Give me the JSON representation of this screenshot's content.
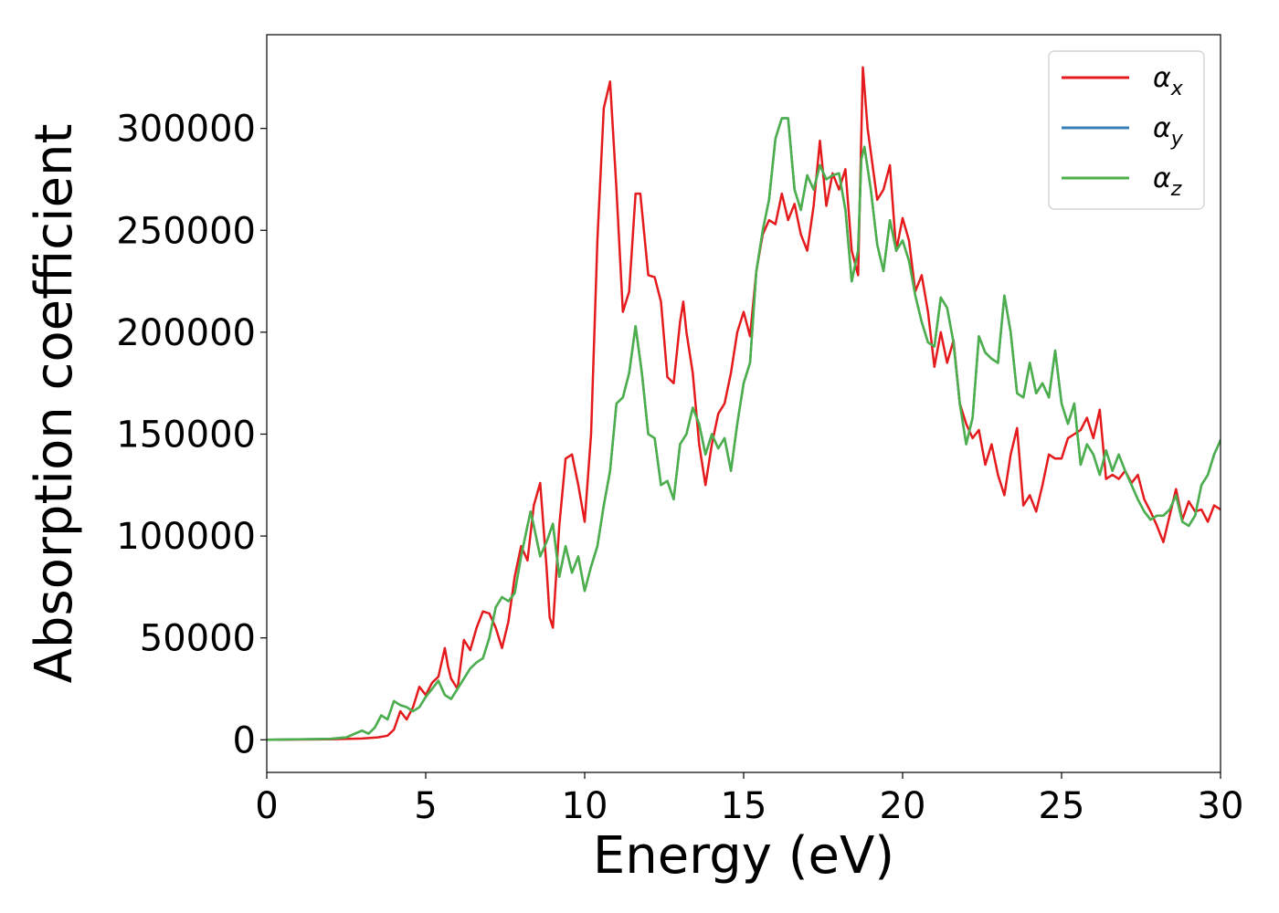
{
  "chart_data": {
    "type": "line",
    "xlabel": "Energy (eV)",
    "ylabel": "Absorption coefficient",
    "xlim": [
      0,
      30
    ],
    "ylim": [
      -16000,
      346000
    ],
    "xticks": [
      0,
      5,
      10,
      15,
      20,
      25,
      30
    ],
    "yticks": [
      0,
      50000,
      100000,
      150000,
      200000,
      250000,
      300000
    ],
    "grid": false,
    "legend_position": "top-right",
    "series": [
      {
        "name": "α",
        "subscript": "x",
        "color": "#e41a1c",
        "x": [
          0,
          2,
          3,
          3.5,
          3.8,
          4.0,
          4.2,
          4.4,
          4.6,
          4.8,
          5.0,
          5.2,
          5.4,
          5.6,
          5.7,
          5.8,
          6.0,
          6.2,
          6.4,
          6.6,
          6.8,
          7.0,
          7.2,
          7.4,
          7.6,
          7.8,
          8.0,
          8.2,
          8.4,
          8.6,
          8.8,
          8.9,
          9.0,
          9.2,
          9.4,
          9.6,
          9.8,
          10.0,
          10.2,
          10.4,
          10.6,
          10.8,
          11.0,
          11.2,
          11.4,
          11.6,
          11.75,
          12.0,
          12.2,
          12.4,
          12.6,
          12.8,
          13.0,
          13.1,
          13.2,
          13.4,
          13.6,
          13.8,
          14.0,
          14.2,
          14.4,
          14.6,
          14.8,
          15.0,
          15.2,
          15.4,
          15.6,
          15.8,
          16.0,
          16.2,
          16.4,
          16.6,
          16.8,
          17.0,
          17.2,
          17.4,
          17.6,
          17.8,
          18.0,
          18.2,
          18.4,
          18.6,
          18.75,
          18.9,
          19.2,
          19.4,
          19.6,
          19.8,
          20.0,
          20.2,
          20.4,
          20.6,
          20.8,
          21.0,
          21.2,
          21.4,
          21.6,
          21.8,
          22.0,
          22.2,
          22.4,
          22.6,
          22.8,
          23.0,
          23.2,
          23.4,
          23.6,
          23.8,
          24.0,
          24.2,
          24.4,
          24.6,
          24.8,
          25.0,
          25.2,
          25.4,
          25.6,
          25.8,
          26.0,
          26.2,
          26.4,
          26.6,
          26.8,
          27.0,
          27.2,
          27.4,
          27.6,
          27.8,
          28.0,
          28.2,
          28.4,
          28.6,
          28.8,
          29.0,
          29.2,
          29.4,
          29.6,
          29.8,
          30.0
        ],
        "y": [
          0,
          200,
          600,
          1200,
          2000,
          5000,
          14000,
          10000,
          16000,
          26000,
          22000,
          28000,
          31000,
          45000,
          36000,
          30000,
          25000,
          49000,
          44000,
          55000,
          63000,
          62000,
          55000,
          45000,
          58000,
          80000,
          95000,
          88000,
          115000,
          126000,
          85000,
          60000,
          55000,
          105000,
          138000,
          140000,
          125000,
          107000,
          150000,
          245000,
          310000,
          323000,
          270000,
          210000,
          220000,
          268000,
          268000,
          228000,
          227000,
          215000,
          178000,
          175000,
          205000,
          215000,
          200000,
          180000,
          145000,
          125000,
          145000,
          160000,
          165000,
          180000,
          200000,
          210000,
          198000,
          230000,
          248000,
          255000,
          253000,
          268000,
          255000,
          263000,
          248000,
          240000,
          262000,
          294000,
          262000,
          278000,
          270000,
          280000,
          240000,
          228000,
          330000,
          300000,
          265000,
          270000,
          282000,
          240000,
          256000,
          245000,
          220000,
          228000,
          210000,
          183000,
          200000,
          185000,
          196000,
          165000,
          155000,
          148000,
          152000,
          135000,
          145000,
          130000,
          120000,
          140000,
          153000,
          115000,
          120000,
          112000,
          125000,
          140000,
          138000,
          138000,
          148000,
          150000,
          152000,
          158000,
          148000,
          162000,
          128000,
          130000,
          128000,
          132000,
          126000,
          130000,
          118000,
          112000,
          105000,
          97000,
          110000,
          123000,
          108000,
          117000,
          112000,
          113000,
          107000,
          115000,
          113000
        ]
      },
      {
        "name": "α",
        "subscript": "y",
        "color": "#377eb8",
        "x": [
          0,
          2,
          2.5,
          3.0,
          3.2,
          3.4,
          3.6,
          3.8,
          4.0,
          4.2,
          4.4,
          4.6,
          4.8,
          5.0,
          5.2,
          5.4,
          5.6,
          5.8,
          6.0,
          6.2,
          6.4,
          6.6,
          6.8,
          7.0,
          7.2,
          7.4,
          7.6,
          7.8,
          8.0,
          8.2,
          8.3,
          8.4,
          8.6,
          8.8,
          9.0,
          9.2,
          9.4,
          9.6,
          9.8,
          10.0,
          10.2,
          10.4,
          10.6,
          10.8,
          11.0,
          11.2,
          11.4,
          11.6,
          11.8,
          12.0,
          12.2,
          12.4,
          12.6,
          12.8,
          13.0,
          13.2,
          13.4,
          13.6,
          13.8,
          14.0,
          14.2,
          14.4,
          14.6,
          14.8,
          15.0,
          15.2,
          15.4,
          15.6,
          15.8,
          16.0,
          16.2,
          16.4,
          16.6,
          16.8,
          17.0,
          17.2,
          17.4,
          17.6,
          17.8,
          18.0,
          18.2,
          18.4,
          18.6,
          18.7,
          18.8,
          19.0,
          19.2,
          19.4,
          19.6,
          19.8,
          20.0,
          20.2,
          20.4,
          20.6,
          20.8,
          21.0,
          21.2,
          21.4,
          21.6,
          21.8,
          22.0,
          22.2,
          22.4,
          22.6,
          22.8,
          23.0,
          23.2,
          23.4,
          23.6,
          23.8,
          24.0,
          24.2,
          24.4,
          24.6,
          24.8,
          25.0,
          25.2,
          25.4,
          25.6,
          25.8,
          26.0,
          26.2,
          26.4,
          26.6,
          26.8,
          27.0,
          27.2,
          27.4,
          27.6,
          27.8,
          28.0,
          28.2,
          28.4,
          28.6,
          28.8,
          29.0,
          29.2,
          29.4,
          29.6,
          29.8,
          30.0
        ],
        "y": [
          0,
          500,
          1200,
          4500,
          3000,
          6000,
          12000,
          10000,
          19000,
          17000,
          16000,
          14000,
          16000,
          21000,
          25000,
          29000,
          22000,
          20000,
          25000,
          30000,
          35000,
          38000,
          40000,
          50000,
          65000,
          70000,
          68000,
          72000,
          90000,
          105000,
          112000,
          105000,
          90000,
          97000,
          106000,
          80000,
          95000,
          82000,
          90000,
          73000,
          85000,
          95000,
          115000,
          132000,
          165000,
          168000,
          180000,
          203000,
          180000,
          150000,
          148000,
          125000,
          127000,
          118000,
          145000,
          150000,
          163000,
          155000,
          140000,
          150000,
          143000,
          148000,
          132000,
          155000,
          175000,
          185000,
          230000,
          250000,
          265000,
          295000,
          305000,
          305000,
          270000,
          260000,
          277000,
          270000,
          282000,
          275000,
          277000,
          278000,
          260000,
          225000,
          240000,
          285000,
          291000,
          270000,
          243000,
          230000,
          255000,
          240000,
          245000,
          235000,
          218000,
          205000,
          195000,
          193000,
          217000,
          212000,
          195000,
          165000,
          145000,
          158000,
          198000,
          190000,
          187000,
          185000,
          218000,
          200000,
          170000,
          168000,
          185000,
          170000,
          175000,
          168000,
          191000,
          165000,
          155000,
          165000,
          135000,
          145000,
          140000,
          130000,
          142000,
          132000,
          140000,
          132000,
          125000,
          118000,
          112000,
          108000,
          110000,
          110000,
          113000,
          120000,
          107000,
          105000,
          110000,
          125000,
          130000,
          140000,
          147000
        ]
      },
      {
        "name": "α",
        "subscript": "z",
        "color": "#4daf4a",
        "x": [
          0,
          2,
          2.5,
          3.0,
          3.2,
          3.4,
          3.6,
          3.8,
          4.0,
          4.2,
          4.4,
          4.6,
          4.8,
          5.0,
          5.2,
          5.4,
          5.6,
          5.8,
          6.0,
          6.2,
          6.4,
          6.6,
          6.8,
          7.0,
          7.2,
          7.4,
          7.6,
          7.8,
          8.0,
          8.2,
          8.3,
          8.4,
          8.6,
          8.8,
          9.0,
          9.2,
          9.4,
          9.6,
          9.8,
          10.0,
          10.2,
          10.4,
          10.6,
          10.8,
          11.0,
          11.2,
          11.4,
          11.6,
          11.8,
          12.0,
          12.2,
          12.4,
          12.6,
          12.8,
          13.0,
          13.2,
          13.4,
          13.6,
          13.8,
          14.0,
          14.2,
          14.4,
          14.6,
          14.8,
          15.0,
          15.2,
          15.4,
          15.6,
          15.8,
          16.0,
          16.2,
          16.4,
          16.6,
          16.8,
          17.0,
          17.2,
          17.4,
          17.6,
          17.8,
          18.0,
          18.2,
          18.4,
          18.6,
          18.7,
          18.8,
          19.0,
          19.2,
          19.4,
          19.6,
          19.8,
          20.0,
          20.2,
          20.4,
          20.6,
          20.8,
          21.0,
          21.2,
          21.4,
          21.6,
          21.8,
          22.0,
          22.2,
          22.4,
          22.6,
          22.8,
          23.0,
          23.2,
          23.4,
          23.6,
          23.8,
          24.0,
          24.2,
          24.4,
          24.6,
          24.8,
          25.0,
          25.2,
          25.4,
          25.6,
          25.8,
          26.0,
          26.2,
          26.4,
          26.6,
          26.8,
          27.0,
          27.2,
          27.4,
          27.6,
          27.8,
          28.0,
          28.2,
          28.4,
          28.6,
          28.8,
          29.0,
          29.2,
          29.4,
          29.6,
          29.8,
          30.0
        ],
        "y": [
          0,
          500,
          1200,
          4500,
          3000,
          6000,
          12000,
          10000,
          19000,
          17000,
          16000,
          14000,
          16000,
          21000,
          25000,
          29000,
          22000,
          20000,
          25000,
          30000,
          35000,
          38000,
          40000,
          50000,
          65000,
          70000,
          68000,
          72000,
          90000,
          105000,
          112000,
          105000,
          90000,
          97000,
          106000,
          80000,
          95000,
          82000,
          90000,
          73000,
          85000,
          95000,
          115000,
          132000,
          165000,
          168000,
          180000,
          203000,
          180000,
          150000,
          148000,
          125000,
          127000,
          118000,
          145000,
          150000,
          163000,
          155000,
          140000,
          150000,
          143000,
          148000,
          132000,
          155000,
          175000,
          185000,
          230000,
          250000,
          265000,
          295000,
          305000,
          305000,
          270000,
          260000,
          277000,
          270000,
          282000,
          275000,
          277000,
          278000,
          260000,
          225000,
          240000,
          285000,
          291000,
          270000,
          243000,
          230000,
          255000,
          240000,
          245000,
          235000,
          218000,
          205000,
          195000,
          193000,
          217000,
          212000,
          195000,
          165000,
          145000,
          158000,
          198000,
          190000,
          187000,
          185000,
          218000,
          200000,
          170000,
          168000,
          185000,
          170000,
          175000,
          168000,
          191000,
          165000,
          155000,
          165000,
          135000,
          145000,
          140000,
          130000,
          142000,
          132000,
          140000,
          132000,
          125000,
          118000,
          112000,
          108000,
          110000,
          110000,
          113000,
          120000,
          107000,
          105000,
          110000,
          125000,
          130000,
          140000,
          147000
        ]
      }
    ]
  }
}
